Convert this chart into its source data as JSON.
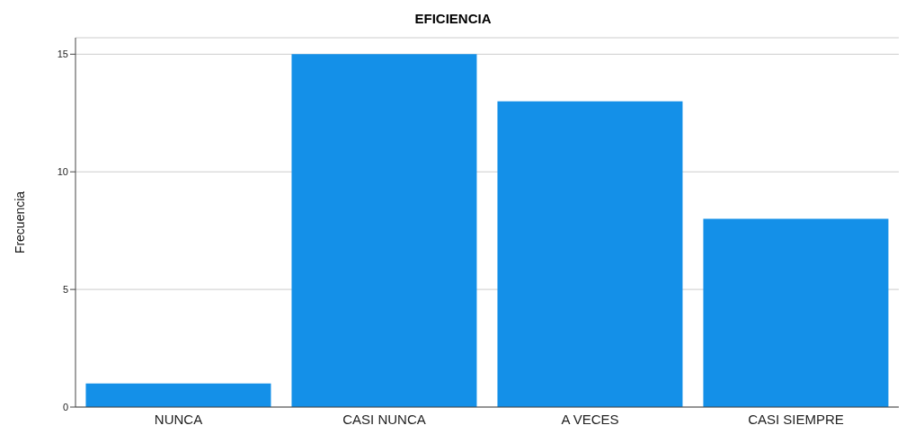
{
  "chart_data": {
    "type": "bar",
    "title": "EFICIENCIA",
    "ylabel": "Frecuencia",
    "categories": [
      "NUNCA",
      "CASI NUNCA",
      "A VECES",
      "CASI SIEMPRE"
    ],
    "values": [
      1,
      15,
      13,
      8
    ],
    "color": "#1490e8",
    "ylim": [
      0,
      15.7
    ],
    "yticks": [
      0,
      5,
      10,
      15
    ],
    "grid": "y"
  }
}
